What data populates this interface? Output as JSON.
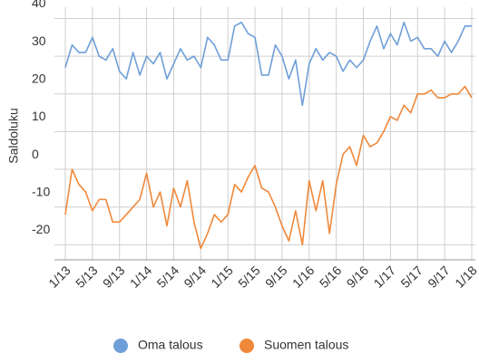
{
  "chart_data": {
    "type": "line",
    "y_label": "Saldoluku",
    "categories": [
      "1/13",
      null,
      null,
      null,
      "5/13",
      null,
      null,
      null,
      "9/13",
      null,
      null,
      null,
      "1/14",
      null,
      null,
      null,
      "5/14",
      null,
      null,
      null,
      "9/14",
      null,
      null,
      null,
      "1/15",
      null,
      null,
      null,
      "5/15",
      null,
      null,
      null,
      "9/15",
      null,
      null,
      null,
      "1/16",
      null,
      null,
      null,
      "5/16",
      null,
      null,
      null,
      "9/16",
      null,
      null,
      null,
      "1/17",
      null,
      null,
      null,
      "5/17",
      null,
      null,
      null,
      "9/17",
      null,
      null,
      null,
      "1/18"
    ],
    "series": [
      {
        "name": "Oma talous",
        "color": "#6f9fd8",
        "values": [
          27,
          33,
          31,
          31,
          35,
          30,
          29,
          32,
          26,
          24,
          31,
          25,
          30,
          28,
          31,
          24,
          28,
          32,
          29,
          30,
          27,
          35,
          33,
          29,
          29,
          38,
          39,
          36,
          35,
          25,
          25,
          33,
          30,
          24,
          29,
          17,
          28,
          32,
          29,
          31,
          30,
          26,
          29,
          27,
          29,
          34,
          38,
          32,
          36,
          33,
          39,
          34,
          35,
          32,
          32,
          30,
          34,
          31,
          34,
          38,
          38
        ]
      },
      {
        "name": "Suomen talous",
        "color": "#f0883a",
        "values": [
          -12,
          0,
          -4,
          -6,
          -11,
          -8,
          -8,
          -14,
          -14,
          -12,
          -10,
          -8,
          -1,
          -10,
          -6,
          -15,
          -5,
          -10,
          -3,
          -14,
          -21,
          -17,
          -12,
          -14,
          -12,
          -4,
          -6,
          -2,
          1,
          -5,
          -6,
          -10,
          -15,
          -19,
          -11,
          -20,
          -3,
          -11,
          -3,
          -17,
          -4,
          4,
          6,
          1,
          9,
          6,
          7,
          10,
          14,
          13,
          17,
          15,
          20,
          20,
          21,
          19,
          19,
          20,
          20,
          22,
          19
        ]
      }
    ],
    "ylim": [
      -24,
      43
    ],
    "yticks": [
      -20,
      -10,
      0,
      10,
      20,
      30,
      40
    ],
    "grid": true,
    "legend": "bottom"
  }
}
